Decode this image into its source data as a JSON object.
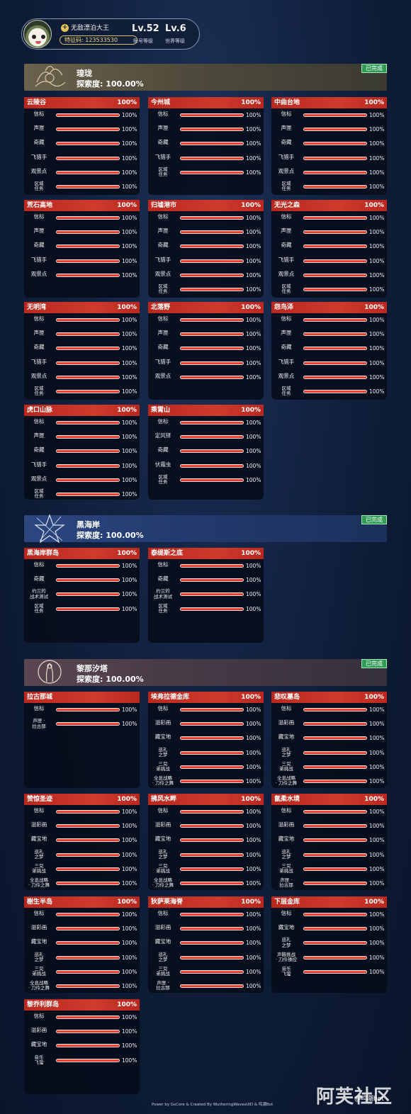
{
  "player": {
    "nickname": "无敌漂泊大王",
    "uid": "特征码: 123533530",
    "account_level": "Lv.52",
    "account_level_label": "账号等级",
    "world_level": "Lv.6",
    "world_level_label": "世界等级"
  },
  "regions": [
    {
      "name": "瑝珑",
      "progress": "探索度: 100.00%",
      "badge": "已完成",
      "areas": [
        {
          "name": "云陵谷",
          "pct": "100%",
          "rows": [
            {
              "label": "信标",
              "value": "100%",
              "fill": 1
            },
            {
              "label": "声匣",
              "value": "100%",
              "fill": 1
            },
            {
              "label": "奇藏",
              "value": "100%",
              "fill": 1
            },
            {
              "label": "飞猎手",
              "value": "100%",
              "fill": 1
            },
            {
              "label": "观景点",
              "value": "100%",
              "fill": 1
            },
            {
              "label": "区域\n任务",
              "value": "100%",
              "fill": 1
            }
          ]
        },
        {
          "name": "今州城",
          "pct": "100%",
          "rows": [
            {
              "label": "信标",
              "value": "100%",
              "fill": 1
            },
            {
              "label": "声匣",
              "value": "100%",
              "fill": 1
            },
            {
              "label": "奇藏",
              "value": "100%",
              "fill": 1
            },
            {
              "label": "飞猎手",
              "value": "100%",
              "fill": 1
            },
            {
              "label": "区域\n任务",
              "value": "100%",
              "fill": 1
            }
          ]
        },
        {
          "name": "中曲台地",
          "pct": "100%",
          "rows": [
            {
              "label": "信标",
              "value": "100%",
              "fill": 1
            },
            {
              "label": "声匣",
              "value": "100%",
              "fill": 1
            },
            {
              "label": "奇藏",
              "value": "100%",
              "fill": 1
            },
            {
              "label": "飞猎手",
              "value": "100%",
              "fill": 1
            },
            {
              "label": "观景点",
              "value": "100%",
              "fill": 1
            },
            {
              "label": "区域\n任务",
              "value": "100%",
              "fill": 1
            }
          ]
        },
        {
          "name": "荒石高地",
          "pct": "100%",
          "rows": [
            {
              "label": "信标",
              "value": "100%",
              "fill": 1
            },
            {
              "label": "声匣",
              "value": "100%",
              "fill": 1
            },
            {
              "label": "奇藏",
              "value": "100%",
              "fill": 1
            },
            {
              "label": "飞猎手",
              "value": "100%",
              "fill": 1
            },
            {
              "label": "观景点",
              "value": "100%",
              "fill": 1
            }
          ]
        },
        {
          "name": "归墟港市",
          "pct": "100%",
          "rows": [
            {
              "label": "信标",
              "value": "100%",
              "fill": 1
            },
            {
              "label": "声匣",
              "value": "100%",
              "fill": 1
            },
            {
              "label": "奇藏",
              "value": "100%",
              "fill": 1
            },
            {
              "label": "飞猎手",
              "value": "100%",
              "fill": 1
            },
            {
              "label": "观景点",
              "value": "100%",
              "fill": 1
            },
            {
              "label": "区域\n任务",
              "value": "100%",
              "fill": 1
            }
          ]
        },
        {
          "name": "无光之森",
          "pct": "100%",
          "rows": [
            {
              "label": "信标",
              "value": "100%",
              "fill": 1
            },
            {
              "label": "声匣",
              "value": "100%",
              "fill": 1
            },
            {
              "label": "奇藏",
              "value": "100%",
              "fill": 1
            },
            {
              "label": "飞猎手",
              "value": "100%",
              "fill": 1
            },
            {
              "label": "观景点",
              "value": "100%",
              "fill": 1
            },
            {
              "label": "区域\n任务",
              "value": "100%",
              "fill": 1
            }
          ]
        },
        {
          "name": "无明湾",
          "pct": "100%",
          "rows": [
            {
              "label": "信标",
              "value": "100%",
              "fill": 1
            },
            {
              "label": "声匣",
              "value": "100%",
              "fill": 1
            },
            {
              "label": "奇藏",
              "value": "100%",
              "fill": 1
            },
            {
              "label": "飞猎手",
              "value": "100%",
              "fill": 1
            },
            {
              "label": "观景点",
              "value": "100%",
              "fill": 1
            },
            {
              "label": "区域\n任务",
              "value": "100%",
              "fill": 1
            }
          ]
        },
        {
          "name": "北落野",
          "pct": "100%",
          "rows": [
            {
              "label": "信标",
              "value": "100%",
              "fill": 1
            },
            {
              "label": "声匣",
              "value": "100%",
              "fill": 1
            },
            {
              "label": "奇藏",
              "value": "100%",
              "fill": 1
            },
            {
              "label": "飞猎手",
              "value": "100%",
              "fill": 1
            },
            {
              "label": "观景点",
              "value": "100%",
              "fill": 1
            }
          ]
        },
        {
          "name": "怨鸟泽",
          "pct": "100%",
          "rows": [
            {
              "label": "信标",
              "value": "100%",
              "fill": 1
            },
            {
              "label": "声匣",
              "value": "100%",
              "fill": 1
            },
            {
              "label": "奇藏",
              "value": "100%",
              "fill": 1
            },
            {
              "label": "飞猎手",
              "value": "100%",
              "fill": 1
            },
            {
              "label": "观景点",
              "value": "100%",
              "fill": 1
            },
            {
              "label": "区域\n任务",
              "value": "100%",
              "fill": 1
            }
          ]
        },
        {
          "name": "虎口山脉",
          "pct": "100%",
          "rows": [
            {
              "label": "信标",
              "value": "100%",
              "fill": 1
            },
            {
              "label": "声匣",
              "value": "100%",
              "fill": 1
            },
            {
              "label": "奇藏",
              "value": "100%",
              "fill": 1
            },
            {
              "label": "飞猎手",
              "value": "100%",
              "fill": 1
            },
            {
              "label": "观景点",
              "value": "100%",
              "fill": 1
            },
            {
              "label": "区域\n任务",
              "value": "100%",
              "fill": 1
            }
          ]
        },
        {
          "name": "乘霄山",
          "pct": "100%",
          "rows": [
            {
              "label": "信标",
              "value": "100%",
              "fill": 1
            },
            {
              "label": "定风铎",
              "value": "100%",
              "fill": 1
            },
            {
              "label": "奇藏",
              "value": "100%",
              "fill": 1
            },
            {
              "label": "伏霜虫",
              "value": "100%",
              "fill": 1
            },
            {
              "label": "区域\n任务",
              "value": "100%",
              "fill": 1
            }
          ]
        }
      ]
    },
    {
      "name": "黑海岸",
      "progress": "探索度: 100.00%",
      "badge": "已完成",
      "areas": [
        {
          "name": "黑海岸群岛",
          "pct": "100%",
          "rows": [
            {
              "label": "信标",
              "value": "100%",
              "fill": 1
            },
            {
              "label": "奇藏",
              "value": "100%",
              "fill": 1
            },
            {
              "label": "约兰的\n战术测试",
              "value": "100%",
              "fill": 1
            },
            {
              "label": "区域\n任务",
              "value": "100%",
              "fill": 1
            }
          ]
        },
        {
          "name": "泰缇斯之底",
          "pct": "100%",
          "rows": [
            {
              "label": "信标",
              "value": "100%",
              "fill": 1
            },
            {
              "label": "奇藏",
              "value": "100%",
              "fill": 1
            },
            {
              "label": "约兰的\n战术测试",
              "value": "100%",
              "fill": 1
            },
            {
              "label": "区域\n任务",
              "value": "100%",
              "fill": 1
            }
          ]
        }
      ]
    },
    {
      "name": "黎那汐塔",
      "progress": "探索度: 100.00%",
      "badge": "已完成",
      "areas": [
        {
          "name": "拉古那城",
          "pct": "",
          "rows": [
            {
              "label": "信标",
              "value": "100%",
              "fill": 1
            },
            {
              "label": "声匣 ·\n拉古那",
              "value": "100%",
              "fill": 1
            }
          ]
        },
        {
          "name": "埃弗拉德金库",
          "pct": "100%",
          "rows": [
            {
              "label": "信标",
              "value": "100%",
              "fill": 1
            },
            {
              "label": "溢彩画",
              "value": "100%",
              "fill": 1
            },
            {
              "label": "藏宝地",
              "value": "100%",
              "fill": 1
            },
            {
              "label": "巡礼\n之梦",
              "value": "100%",
              "fill": 1
            },
            {
              "label": "三兕\n弟挑战",
              "value": "100%",
              "fill": 1
            },
            {
              "label": "全息战略\n· 刀伶之舞",
              "value": "100%",
              "fill": 1
            }
          ]
        },
        {
          "name": "悲叹墓岛",
          "pct": "100%",
          "rows": [
            {
              "label": "信标",
              "value": "100%",
              "fill": 1
            },
            {
              "label": "溢彩画",
              "value": "100%",
              "fill": 1
            },
            {
              "label": "藏宝地",
              "value": "100%",
              "fill": 1
            },
            {
              "label": "巡礼\n之梦",
              "value": "100%",
              "fill": 1
            },
            {
              "label": "三兕\n弟挑战",
              "value": "100%",
              "fill": 1
            },
            {
              "label": "全息战略\n· 刀伶之舞",
              "value": "100%",
              "fill": 1
            }
          ]
        },
        {
          "name": "赞惊圣迹",
          "pct": "100%",
          "rows": [
            {
              "label": "信标",
              "value": "100%",
              "fill": 1
            },
            {
              "label": "溢彩画",
              "value": "100%",
              "fill": 1
            },
            {
              "label": "藏宝地",
              "value": "100%",
              "fill": 1
            },
            {
              "label": "巡礼\n之梦",
              "value": "100%",
              "fill": 1
            },
            {
              "label": "三兕\n弟挑战",
              "value": "100%",
              "fill": 1
            },
            {
              "label": "全息战略\n· 刀伶之舞",
              "value": "100%",
              "fill": 1
            }
          ]
        },
        {
          "name": "拂风水畔",
          "pct": "100%",
          "rows": [
            {
              "label": "信标",
              "value": "100%",
              "fill": 1
            },
            {
              "label": "溢彩画",
              "value": "100%",
              "fill": 1
            },
            {
              "label": "藏宝地",
              "value": "100%",
              "fill": 1
            },
            {
              "label": "巡礼\n之梦",
              "value": "100%",
              "fill": 1
            },
            {
              "label": "三兕\n弟挑战",
              "value": "100%",
              "fill": 1
            },
            {
              "label": "全息战略\n· 刀伶之舞",
              "value": "100%",
              "fill": 1
            }
          ]
        },
        {
          "name": "氤柔水境",
          "pct": "100%",
          "rows": [
            {
              "label": "信标",
              "value": "100%",
              "fill": 1
            },
            {
              "label": "溢彩画",
              "value": "100%",
              "fill": 1
            },
            {
              "label": "藏宝地",
              "value": "100%",
              "fill": 1
            },
            {
              "label": "巡礼\n之梦",
              "value": "100%",
              "fill": 1
            },
            {
              "label": "三兕\n弟挑战",
              "value": "100%",
              "fill": 1
            },
            {
              "label": "声匣 ·\n拉古那",
              "value": "100%",
              "fill": 1
            }
          ]
        },
        {
          "name": "榭生半岛",
          "pct": "100%",
          "rows": [
            {
              "label": "信标",
              "value": "100%",
              "fill": 1
            },
            {
              "label": "溢彩画",
              "value": "100%",
              "fill": 1
            },
            {
              "label": "藏宝地",
              "value": "100%",
              "fill": 1
            },
            {
              "label": "巡礼\n之梦",
              "value": "100%",
              "fill": 1
            },
            {
              "label": "三兕\n弟挑战",
              "value": "100%",
              "fill": 1
            },
            {
              "label": "全息战略\n· 刀伶之舞",
              "value": "100%",
              "fill": 1
            }
          ]
        },
        {
          "name": "狄萨莱海脊",
          "pct": "100%",
          "rows": [
            {
              "label": "信标",
              "value": "100%",
              "fill": 1
            },
            {
              "label": "溢彩画",
              "value": "100%",
              "fill": 1
            },
            {
              "label": "藏宝地",
              "value": "100%",
              "fill": 1
            },
            {
              "label": "巡礼\n之梦",
              "value": "100%",
              "fill": 1
            },
            {
              "label": "三兕\n弟挑战",
              "value": "100%",
              "fill": 1
            },
            {
              "label": "声匣 ·\n拉古那",
              "value": "100%",
              "fill": 1
            }
          ]
        },
        {
          "name": "下层金库",
          "pct": "100%",
          "rows": [
            {
              "label": "信标",
              "value": "100%",
              "fill": 1
            },
            {
              "label": "藏宝地",
              "value": "100%",
              "fill": 1
            },
            {
              "label": "巡礼\n之梦",
              "value": "100%",
              "fill": 1
            },
            {
              "label": "声骸挑战\n· 刀伶操控",
              "value": "100%",
              "fill": 1
            },
            {
              "label": "音乐\n飞蛩",
              "value": "100%",
              "fill": 1
            }
          ]
        },
        {
          "name": "黎乔利群岛",
          "pct": "100%",
          "rows": [
            {
              "label": "信标",
              "value": "100%",
              "fill": 1
            },
            {
              "label": "溢彩画",
              "value": "100%",
              "fill": 1
            },
            {
              "label": "藏宝地",
              "value": "100%",
              "fill": 1
            },
            {
              "label": "音乐\n飞蛩",
              "value": "100%",
              "fill": 1
            }
          ]
        }
      ]
    }
  ],
  "footer": "Power by GsCore & Created By WutheringWavesUID & 鸣潮Bot",
  "watermark": "阿芙社区",
  "watermark_small": "@鸣潮bot"
}
